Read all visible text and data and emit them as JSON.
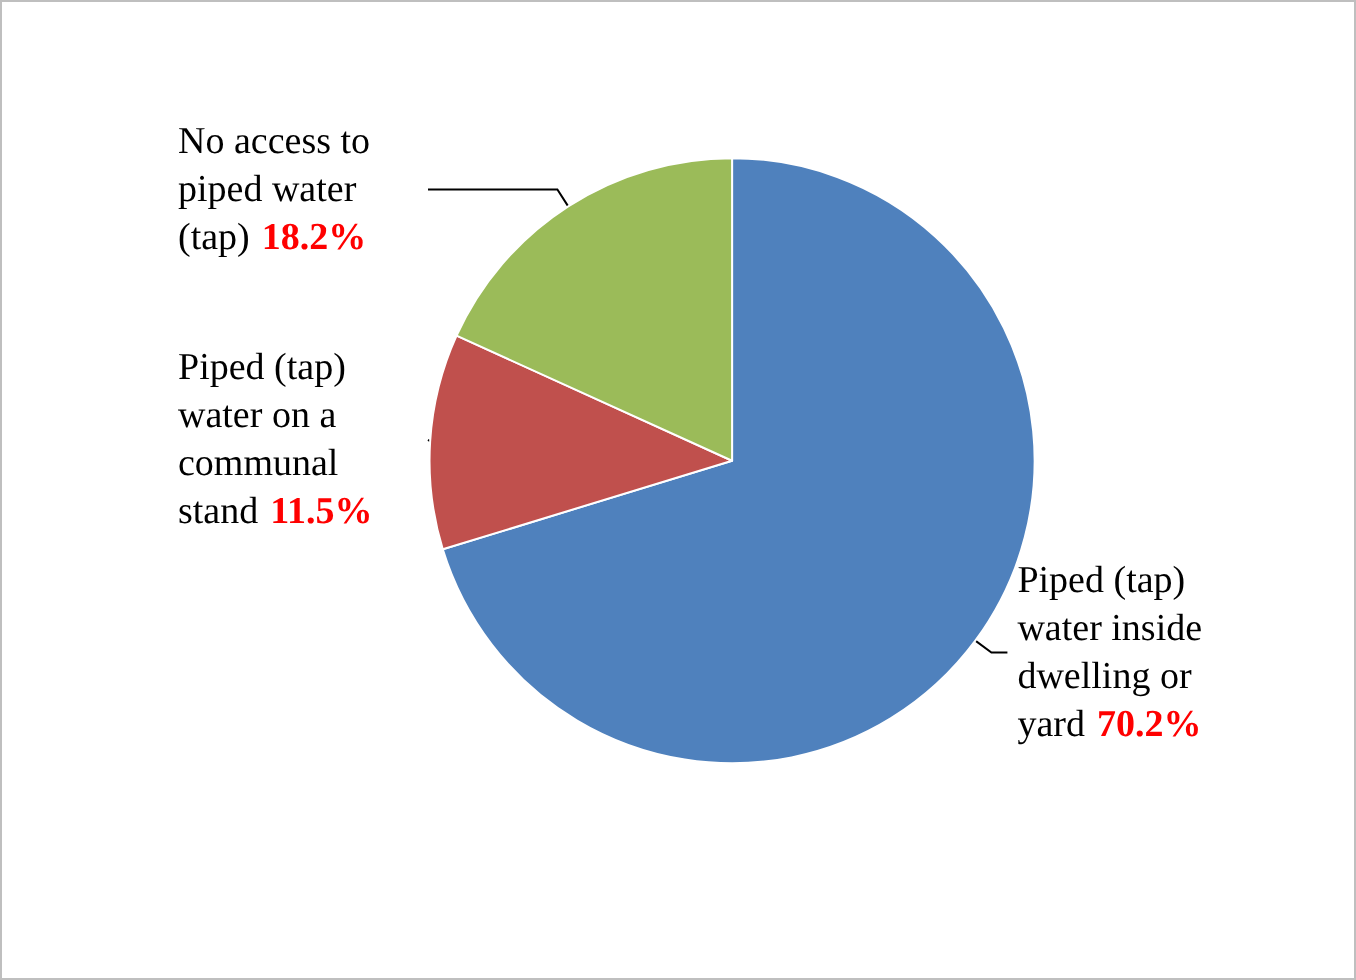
{
  "chart_data": {
    "type": "pie",
    "categories": [
      "Piped (tap) water inside dwelling or yard",
      "Piped (tap) water on a communal stand",
      "No access to piped water (tap)"
    ],
    "values": [
      70.2,
      11.5,
      18.2
    ],
    "colors": [
      "#4f81bd",
      "#c0504d",
      "#9bbb59"
    ],
    "value_labels": [
      "70.2%",
      "11.5%",
      "18.2%"
    ]
  }
}
